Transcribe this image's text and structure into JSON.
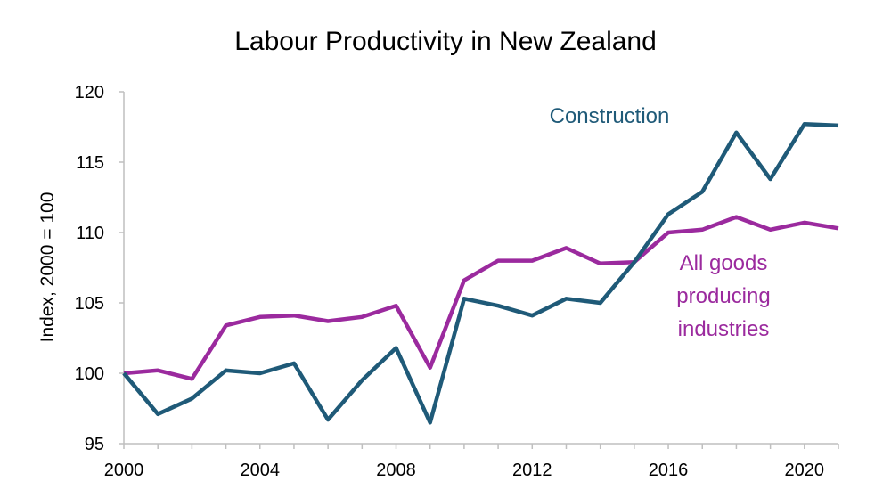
{
  "chart_data": {
    "type": "line",
    "title": "Labour Productivity in New Zealand",
    "xlabel": "",
    "ylabel": "Index, 2000 = 100",
    "xlim": [
      2000,
      2021
    ],
    "ylim": [
      95,
      120
    ],
    "grid": false,
    "x_ticks": [
      2000,
      2004,
      2008,
      2012,
      2016,
      2020
    ],
    "y_ticks": [
      95,
      100,
      105,
      110,
      115,
      120
    ],
    "x": [
      2000,
      2001,
      2002,
      2003,
      2004,
      2005,
      2006,
      2007,
      2008,
      2009,
      2010,
      2011,
      2012,
      2013,
      2014,
      2015,
      2016,
      2017,
      2018,
      2019,
      2020,
      2021
    ],
    "series": [
      {
        "name": "Construction",
        "color": "#1f5a78",
        "values": [
          100.0,
          97.1,
          98.2,
          100.2,
          100.0,
          100.7,
          96.7,
          99.5,
          101.8,
          96.5,
          105.3,
          104.8,
          104.1,
          105.3,
          105.0,
          107.9,
          111.3,
          112.9,
          117.1,
          113.8,
          117.7,
          117.6
        ]
      },
      {
        "name": "All goods producing industries",
        "color": "#9b2a9e",
        "values": [
          100.0,
          100.2,
          99.6,
          103.4,
          104.0,
          104.1,
          103.7,
          104.0,
          104.8,
          100.4,
          106.6,
          108.0,
          108.0,
          108.9,
          107.8,
          107.9,
          110.0,
          110.2,
          111.1,
          110.2,
          110.7,
          110.3
        ]
      }
    ],
    "annotations": [
      {
        "series": 0,
        "lines": [
          "Construction"
        ]
      },
      {
        "series": 1,
        "lines": [
          "All goods",
          "producing",
          "industries"
        ]
      }
    ]
  }
}
